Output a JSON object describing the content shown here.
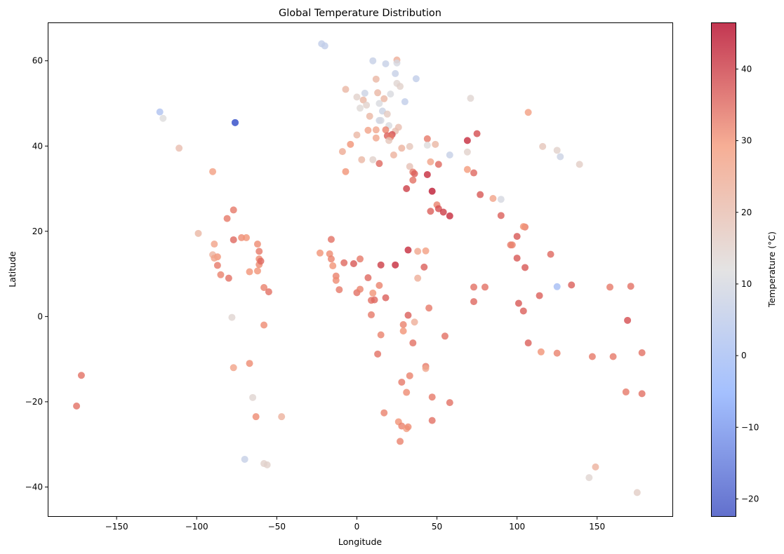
{
  "chart_data": {
    "type": "scatter",
    "title": "Global Temperature Distribution",
    "xlabel": "Longitude",
    "ylabel": "Latitude",
    "xlim": [
      -193,
      197
    ],
    "ylim": [
      -47,
      69
    ],
    "xticks": [
      -150,
      -100,
      -50,
      0,
      50,
      100,
      150
    ],
    "yticks": [
      -40,
      -20,
      0,
      20,
      40,
      60
    ],
    "xtick_labels": [
      "−150",
      "−100",
      "−50",
      "0",
      "50",
      "100",
      "150"
    ],
    "ytick_labels": [
      "−40",
      "−20",
      "0",
      "20",
      "40",
      "60"
    ],
    "grid": false,
    "colormap": "coolwarm",
    "point_alpha": 0.8,
    "colorbar": {
      "label": "Temperature (°C)",
      "range": [
        -22.5,
        46.5
      ],
      "ticks": [
        -20,
        -10,
        0,
        10,
        20,
        30,
        40
      ],
      "tick_labels": [
        "−20",
        "−10",
        "0",
        "10",
        "20",
        "30",
        "40"
      ]
    },
    "points": [
      {
        "x": -123,
        "y": 48,
        "t": 2
      },
      {
        "x": -121,
        "y": 46.5,
        "t": 12
      },
      {
        "x": -111,
        "y": 39.5,
        "t": 20
      },
      {
        "x": -76,
        "y": 45.5,
        "t": -18
      },
      {
        "x": -90,
        "y": 34,
        "t": 28
      },
      {
        "x": -77,
        "y": 25,
        "t": 33
      },
      {
        "x": -81,
        "y": 23,
        "t": 33
      },
      {
        "x": -99,
        "y": 19.5,
        "t": 22
      },
      {
        "x": -89,
        "y": 17,
        "t": 27
      },
      {
        "x": -72,
        "y": 18.5,
        "t": 31
      },
      {
        "x": -77,
        "y": 18,
        "t": 35
      },
      {
        "x": -69,
        "y": 18.5,
        "t": 30
      },
      {
        "x": -62,
        "y": 17,
        "t": 31
      },
      {
        "x": -90,
        "y": 14.5,
        "t": 23
      },
      {
        "x": -87,
        "y": 14,
        "t": 30
      },
      {
        "x": -89,
        "y": 13.7,
        "t": 27
      },
      {
        "x": -61,
        "y": 15.3,
        "t": 33
      },
      {
        "x": -61,
        "y": 13.5,
        "t": 31
      },
      {
        "x": -61,
        "y": 12.2,
        "t": 31
      },
      {
        "x": -60,
        "y": 13,
        "t": 35
      },
      {
        "x": -87,
        "y": 12,
        "t": 33
      },
      {
        "x": -67,
        "y": 10.5,
        "t": 30
      },
      {
        "x": -62,
        "y": 10.7,
        "t": 30
      },
      {
        "x": -85,
        "y": 9.8,
        "t": 32
      },
      {
        "x": -80,
        "y": 9,
        "t": 34
      },
      {
        "x": -58,
        "y": 6.8,
        "t": 32
      },
      {
        "x": -55,
        "y": 5.8,
        "t": 34
      },
      {
        "x": -78,
        "y": -0.2,
        "t": 14
      },
      {
        "x": -58,
        "y": -2,
        "t": 31
      },
      {
        "x": -77,
        "y": -12,
        "t": 27
      },
      {
        "x": -67,
        "y": -11,
        "t": 31
      },
      {
        "x": -65,
        "y": -19,
        "t": 14
      },
      {
        "x": -63,
        "y": -23.5,
        "t": 31
      },
      {
        "x": -47,
        "y": -23.5,
        "t": 23
      },
      {
        "x": -70,
        "y": -33.5,
        "t": 7
      },
      {
        "x": -58,
        "y": -34.5,
        "t": 15
      },
      {
        "x": -56,
        "y": -34.8,
        "t": 15
      },
      {
        "x": -172,
        "y": -13.8,
        "t": 34
      },
      {
        "x": -175,
        "y": -21,
        "t": 34
      },
      {
        "x": -22,
        "y": 64,
        "t": 6
      },
      {
        "x": -20,
        "y": 63.5,
        "t": 6
      },
      {
        "x": 10,
        "y": 60,
        "t": 7
      },
      {
        "x": 18,
        "y": 59.3,
        "t": 7
      },
      {
        "x": 25,
        "y": 60.2,
        "t": 24
      },
      {
        "x": 25,
        "y": 59.5,
        "t": 10
      },
      {
        "x": 24,
        "y": 57,
        "t": 7
      },
      {
        "x": 37,
        "y": 55.8,
        "t": 6
      },
      {
        "x": 12,
        "y": 55.7,
        "t": 22
      },
      {
        "x": 25,
        "y": 54.7,
        "t": 14
      },
      {
        "x": 27,
        "y": 54,
        "t": 15
      },
      {
        "x": -7,
        "y": 53.3,
        "t": 22
      },
      {
        "x": 5,
        "y": 52.4,
        "t": 8
      },
      {
        "x": 13,
        "y": 52.5,
        "t": 22
      },
      {
        "x": 21,
        "y": 52.2,
        "t": 11
      },
      {
        "x": 0,
        "y": 51.5,
        "t": 15
      },
      {
        "x": 4,
        "y": 50.8,
        "t": 22
      },
      {
        "x": 14,
        "y": 50,
        "t": 11
      },
      {
        "x": 17,
        "y": 51.1,
        "t": 22
      },
      {
        "x": 30,
        "y": 50.4,
        "t": 6
      },
      {
        "x": 71,
        "y": 51.2,
        "t": 14
      },
      {
        "x": 2,
        "y": 48.9,
        "t": 13
      },
      {
        "x": 6,
        "y": 49.6,
        "t": 15
      },
      {
        "x": 16,
        "y": 48.2,
        "t": 8
      },
      {
        "x": 19,
        "y": 47.5,
        "t": 17
      },
      {
        "x": 107,
        "y": 47.9,
        "t": 28
      },
      {
        "x": 8,
        "y": 47,
        "t": 22
      },
      {
        "x": 14,
        "y": 46,
        "t": 8
      },
      {
        "x": 15,
        "y": 46,
        "t": 10
      },
      {
        "x": 20,
        "y": 44.8,
        "t": 11
      },
      {
        "x": 26,
        "y": 44.4,
        "t": 20
      },
      {
        "x": -76,
        "y": 45.5,
        "t": -18
      },
      {
        "x": 7,
        "y": 43.7,
        "t": 27
      },
      {
        "x": 12,
        "y": 43.8,
        "t": 26
      },
      {
        "x": 18,
        "y": 43.8,
        "t": 32
      },
      {
        "x": 24,
        "y": 43.5,
        "t": 20
      },
      {
        "x": 22,
        "y": 42.7,
        "t": 38
      },
      {
        "x": 19,
        "y": 42.4,
        "t": 36
      },
      {
        "x": 21,
        "y": 42.1,
        "t": 33
      },
      {
        "x": 0,
        "y": 42.6,
        "t": 22
      },
      {
        "x": 12,
        "y": 41.9,
        "t": 26
      },
      {
        "x": 20,
        "y": 41.3,
        "t": 18
      },
      {
        "x": 44,
        "y": 41.7,
        "t": 33
      },
      {
        "x": 69,
        "y": 41.3,
        "t": 42
      },
      {
        "x": 75,
        "y": 42.9,
        "t": 38
      },
      {
        "x": 44,
        "y": 40.2,
        "t": 12
      },
      {
        "x": 49,
        "y": 40.4,
        "t": 22
      },
      {
        "x": -4,
        "y": 40.4,
        "t": 30
      },
      {
        "x": 28,
        "y": 39.5,
        "t": 23
      },
      {
        "x": 33,
        "y": 39.9,
        "t": 18
      },
      {
        "x": 116,
        "y": 39.9,
        "t": 18
      },
      {
        "x": 125,
        "y": 39,
        "t": 15
      },
      {
        "x": 127,
        "y": 37.5,
        "t": 8
      },
      {
        "x": 139,
        "y": 35.7,
        "t": 16
      },
      {
        "x": -9,
        "y": 38.7,
        "t": 25
      },
      {
        "x": 23,
        "y": 37.9,
        "t": 23
      },
      {
        "x": 58,
        "y": 37.9,
        "t": 7
      },
      {
        "x": 10,
        "y": 36.8,
        "t": 15
      },
      {
        "x": 3,
        "y": 36.8,
        "t": 22
      },
      {
        "x": 46,
        "y": 36.3,
        "t": 27
      },
      {
        "x": 69,
        "y": 38.6,
        "t": 15
      },
      {
        "x": 14,
        "y": 35.9,
        "t": 35
      },
      {
        "x": 51,
        "y": 35.7,
        "t": 35
      },
      {
        "x": 33,
        "y": 35.2,
        "t": 19
      },
      {
        "x": 69,
        "y": 34.5,
        "t": 29
      },
      {
        "x": -7,
        "y": 34,
        "t": 30
      },
      {
        "x": 35,
        "y": 33.9,
        "t": 33
      },
      {
        "x": 36,
        "y": 33.5,
        "t": 36
      },
      {
        "x": 44,
        "y": 33.3,
        "t": 42
      },
      {
        "x": 73,
        "y": 33.7,
        "t": 35
      },
      {
        "x": 35,
        "y": 32,
        "t": 34
      },
      {
        "x": 31,
        "y": 30,
        "t": 40
      },
      {
        "x": 47,
        "y": 29.4,
        "t": 44
      },
      {
        "x": 77,
        "y": 28.6,
        "t": 37
      },
      {
        "x": 85,
        "y": 27.7,
        "t": 27
      },
      {
        "x": 90,
        "y": 27.5,
        "t": 10
      },
      {
        "x": 50,
        "y": 26.2,
        "t": 32
      },
      {
        "x": 51,
        "y": 25.3,
        "t": 38
      },
      {
        "x": 54,
        "y": 24.5,
        "t": 40
      },
      {
        "x": 46,
        "y": 24.7,
        "t": 36
      },
      {
        "x": 58,
        "y": 23.6,
        "t": 42
      },
      {
        "x": 90,
        "y": 23.7,
        "t": 36
      },
      {
        "x": 105,
        "y": 21,
        "t": 33
      },
      {
        "x": 104,
        "y": 21.1,
        "t": 30
      },
      {
        "x": 96,
        "y": 16.8,
        "t": 33
      },
      {
        "x": 97,
        "y": 16.8,
        "t": 32
      },
      {
        "x": 100,
        "y": 18.8,
        "t": 37
      },
      {
        "x": 121,
        "y": 14.6,
        "t": 35
      },
      {
        "x": 100,
        "y": 13.7,
        "t": 37
      },
      {
        "x": 105,
        "y": 11.5,
        "t": 37
      },
      {
        "x": 134,
        "y": 7.4,
        "t": 36
      },
      {
        "x": 125,
        "y": 7,
        "t": 0
      },
      {
        "x": 73,
        "y": 6.9,
        "t": 34
      },
      {
        "x": 80,
        "y": 6.9,
        "t": 34
      },
      {
        "x": 73,
        "y": 3.5,
        "t": 35
      },
      {
        "x": 101,
        "y": 3.1,
        "t": 37
      },
      {
        "x": 104,
        "y": 1.3,
        "t": 36
      },
      {
        "x": 114,
        "y": 4.9,
        "t": 36
      },
      {
        "x": 158,
        "y": 6.9,
        "t": 33
      },
      {
        "x": 171,
        "y": 7.1,
        "t": 34
      },
      {
        "x": 169,
        "y": -0.9,
        "t": 38
      },
      {
        "x": 107,
        "y": -6.2,
        "t": 36
      },
      {
        "x": 115,
        "y": -8.3,
        "t": 30
      },
      {
        "x": 125,
        "y": -8.6,
        "t": 32
      },
      {
        "x": 147,
        "y": -9.4,
        "t": 33
      },
      {
        "x": 160,
        "y": -9.4,
        "t": 33
      },
      {
        "x": 178,
        "y": -8.5,
        "t": 34
      },
      {
        "x": 168,
        "y": -17.7,
        "t": 33
      },
      {
        "x": 178,
        "y": -18.1,
        "t": 34
      },
      {
        "x": 149,
        "y": -35.3,
        "t": 23
      },
      {
        "x": 145,
        "y": -37.8,
        "t": 14
      },
      {
        "x": 175,
        "y": -41.3,
        "t": 16
      },
      {
        "x": -23,
        "y": 14.9,
        "t": 30
      },
      {
        "x": -17,
        "y": 14.7,
        "t": 31
      },
      {
        "x": -16,
        "y": 13.5,
        "t": 32
      },
      {
        "x": -16,
        "y": 18.1,
        "t": 34
      },
      {
        "x": -15,
        "y": 11.9,
        "t": 30
      },
      {
        "x": -13,
        "y": 9.5,
        "t": 32
      },
      {
        "x": -13,
        "y": 8.5,
        "t": 31
      },
      {
        "x": -11,
        "y": 6.3,
        "t": 33
      },
      {
        "x": -8,
        "y": 12.6,
        "t": 35
      },
      {
        "x": -2,
        "y": 12.4,
        "t": 37
      },
      {
        "x": 2,
        "y": 13.5,
        "t": 33
      },
      {
        "x": 0,
        "y": 5.6,
        "t": 34
      },
      {
        "x": 2,
        "y": 6.4,
        "t": 32
      },
      {
        "x": 7,
        "y": 9.1,
        "t": 35
      },
      {
        "x": 9,
        "y": 3.8,
        "t": 34
      },
      {
        "x": 11,
        "y": 3.9,
        "t": 35
      },
      {
        "x": 10,
        "y": 5.5,
        "t": 30
      },
      {
        "x": 9,
        "y": 0.4,
        "t": 33
      },
      {
        "x": 15,
        "y": 12.1,
        "t": 40
      },
      {
        "x": 14,
        "y": 7.3,
        "t": 32
      },
      {
        "x": 18,
        "y": 4.4,
        "t": 36
      },
      {
        "x": 24,
        "y": 12.1,
        "t": 42
      },
      {
        "x": 32,
        "y": 15.6,
        "t": 42
      },
      {
        "x": 38,
        "y": 15.3,
        "t": 26
      },
      {
        "x": 43,
        "y": 15.4,
        "t": 28
      },
      {
        "x": 42,
        "y": 11.6,
        "t": 36
      },
      {
        "x": 38,
        "y": 9,
        "t": 24
      },
      {
        "x": 45,
        "y": 2,
        "t": 33
      },
      {
        "x": 32,
        "y": 0.3,
        "t": 36
      },
      {
        "x": 36,
        "y": -1.3,
        "t": 24
      },
      {
        "x": 29,
        "y": -1.9,
        "t": 32
      },
      {
        "x": 29,
        "y": -3.4,
        "t": 30
      },
      {
        "x": 15,
        "y": -4.3,
        "t": 32
      },
      {
        "x": 13,
        "y": -8.8,
        "t": 34
      },
      {
        "x": 35,
        "y": -6.2,
        "t": 34
      },
      {
        "x": 55,
        "y": -4.6,
        "t": 34
      },
      {
        "x": 33,
        "y": -13.9,
        "t": 32
      },
      {
        "x": 28,
        "y": -15.4,
        "t": 33
      },
      {
        "x": 31,
        "y": -17.8,
        "t": 31
      },
      {
        "x": 43,
        "y": -11.7,
        "t": 33
      },
      {
        "x": 43,
        "y": -12.2,
        "t": 26
      },
      {
        "x": 47,
        "y": -18.9,
        "t": 33
      },
      {
        "x": 58,
        "y": -20.2,
        "t": 34
      },
      {
        "x": 17,
        "y": -22.6,
        "t": 32
      },
      {
        "x": 26,
        "y": -24.7,
        "t": 30
      },
      {
        "x": 28,
        "y": -25.7,
        "t": 32
      },
      {
        "x": 31,
        "y": -26.3,
        "t": 28
      },
      {
        "x": 32,
        "y": -25.9,
        "t": 31
      },
      {
        "x": 47,
        "y": -24.4,
        "t": 34
      },
      {
        "x": 27,
        "y": -29.3,
        "t": 32
      }
    ]
  }
}
